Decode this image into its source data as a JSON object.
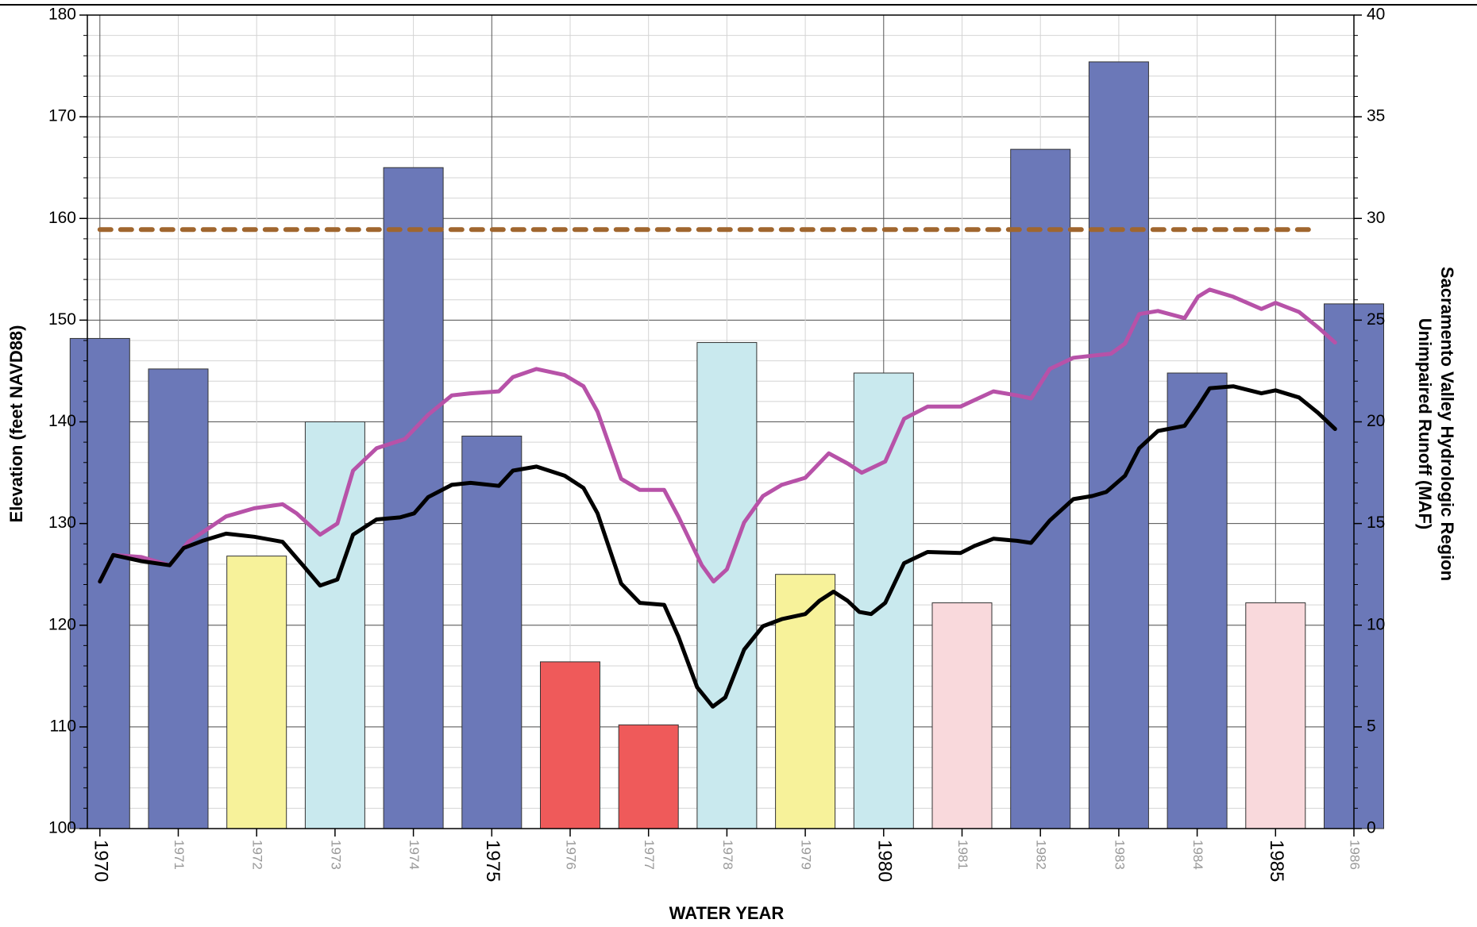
{
  "chart_data": {
    "type": "combo",
    "xlabel": "WATER YEAR",
    "ylabel": "Elevation (feet NAVD88)",
    "y2label": [
      "Sacramento Valley Hydrologic Region",
      "Unimpaired Runoff (MAF)"
    ],
    "xlim": [
      1969.84,
      1986.0
    ],
    "xticks": [
      1970,
      1971,
      1972,
      1973,
      1974,
      1975,
      1976,
      1977,
      1978,
      1979,
      1980,
      1981,
      1982,
      1983,
      1984,
      1985,
      1986
    ],
    "ylim": [
      100,
      180
    ],
    "yticks": [
      100,
      110,
      120,
      130,
      140,
      150,
      160,
      170,
      180
    ],
    "y2lim": [
      0,
      40
    ],
    "y2ticks": [
      0,
      5,
      10,
      15,
      20,
      25,
      30,
      35,
      40
    ],
    "grid": true,
    "series": [
      {
        "type": "bar",
        "axis": "y2",
        "x": [
          1970,
          1971,
          1972,
          1973,
          1974,
          1975,
          1976,
          1977,
          1978,
          1979,
          1980,
          1981,
          1982,
          1983,
          1984,
          1985,
          1986
        ],
        "values": [
          24.1,
          22.6,
          13.4,
          20.0,
          32.5,
          19.3,
          8.2,
          5.1,
          23.9,
          12.5,
          22.4,
          11.1,
          33.4,
          37.7,
          22.4,
          11.1,
          25.8
        ],
        "colors": [
          "#6b78b8",
          "#6b78b8",
          "#f7f29a",
          "#c9e9ee",
          "#6b78b8",
          "#6b78b8",
          "#ef5a5a",
          "#ef5a5a",
          "#c9e9ee",
          "#f7f29a",
          "#c9e9ee",
          "#f9d9dc",
          "#6b78b8",
          "#6b78b8",
          "#6b78b8",
          "#f9d9dc",
          "#6b78b8"
        ]
      },
      {
        "type": "line",
        "color": "#b752a8",
        "x": [
          1970.0,
          1970.17,
          1970.53,
          1970.89,
          1971.13,
          1971.61,
          1971.97,
          1972.33,
          1972.51,
          1972.81,
          1973.03,
          1973.23,
          1973.53,
          1973.89,
          1974.19,
          1974.49,
          1974.73,
          1975.09,
          1975.27,
          1975.57,
          1975.93,
          1976.17,
          1976.35,
          1976.65,
          1976.89,
          1977.2,
          1977.38,
          1977.68,
          1977.83,
          1978.0,
          1978.22,
          1978.46,
          1978.7,
          1979.0,
          1979.3,
          1979.54,
          1979.72,
          1980.02,
          1980.26,
          1980.56,
          1980.98,
          1981.4,
          1981.7,
          1981.88,
          1982.12,
          1982.42,
          1982.66,
          1982.9,
          1983.08,
          1983.26,
          1983.5,
          1983.84,
          1984.01,
          1984.16,
          1984.46,
          1984.82,
          1985.0,
          1985.3,
          1985.54,
          1985.76
        ],
        "values": [
          124.3,
          126.9,
          126.7,
          125.9,
          128.2,
          130.7,
          131.5,
          131.9,
          131.0,
          128.9,
          130.0,
          135.2,
          137.4,
          138.3,
          140.7,
          142.6,
          142.8,
          143.0,
          144.4,
          145.2,
          144.6,
          143.5,
          141.0,
          134.4,
          133.3,
          133.3,
          130.7,
          125.9,
          124.3,
          125.5,
          130.1,
          132.7,
          133.8,
          134.5,
          136.9,
          135.9,
          135.0,
          136.1,
          140.3,
          141.5,
          141.5,
          143.0,
          142.6,
          142.3,
          145.2,
          146.3,
          146.5,
          146.7,
          147.7,
          150.6,
          150.9,
          150.2,
          152.3,
          153.0,
          152.3,
          151.1,
          151.7,
          150.8,
          149.3,
          147.8
        ]
      },
      {
        "type": "line",
        "color": "#000000",
        "x": [
          1970.0,
          1970.17,
          1970.53,
          1970.89,
          1971.07,
          1971.31,
          1971.61,
          1971.97,
          1972.33,
          1972.59,
          1972.81,
          1973.03,
          1973.23,
          1973.53,
          1973.83,
          1974.01,
          1974.19,
          1974.49,
          1974.73,
          1975.09,
          1975.27,
          1975.57,
          1975.93,
          1976.17,
          1976.35,
          1976.65,
          1976.89,
          1977.2,
          1977.38,
          1977.62,
          1977.82,
          1977.98,
          1978.22,
          1978.46,
          1978.7,
          1979.0,
          1979.18,
          1979.36,
          1979.54,
          1979.69,
          1979.84,
          1980.02,
          1980.26,
          1980.56,
          1980.98,
          1981.16,
          1981.4,
          1981.7,
          1981.88,
          1982.12,
          1982.42,
          1982.66,
          1982.84,
          1983.08,
          1983.26,
          1983.5,
          1983.84,
          1984.01,
          1984.16,
          1984.46,
          1984.82,
          1985.0,
          1985.3,
          1985.54,
          1985.76
        ],
        "values": [
          124.3,
          126.9,
          126.3,
          125.9,
          127.6,
          128.3,
          129.0,
          128.7,
          128.2,
          125.9,
          123.9,
          124.5,
          128.9,
          130.4,
          130.6,
          131.0,
          132.6,
          133.8,
          134.0,
          133.7,
          135.2,
          135.6,
          134.7,
          133.5,
          131.0,
          124.1,
          122.2,
          122.0,
          118.9,
          113.9,
          112.0,
          112.9,
          117.6,
          119.9,
          120.6,
          121.1,
          122.4,
          123.3,
          122.4,
          121.3,
          121.1,
          122.2,
          126.1,
          127.2,
          127.1,
          127.8,
          128.5,
          128.3,
          128.1,
          130.3,
          132.4,
          132.7,
          133.1,
          134.7,
          137.4,
          139.1,
          139.6,
          141.5,
          143.3,
          143.5,
          142.8,
          143.1,
          142.4,
          140.9,
          139.3
        ]
      },
      {
        "type": "line",
        "color": "#a0662e",
        "dashed": true,
        "x": [
          1970.0,
          1985.54
        ],
        "values": [
          158.9,
          158.9
        ]
      }
    ]
  }
}
